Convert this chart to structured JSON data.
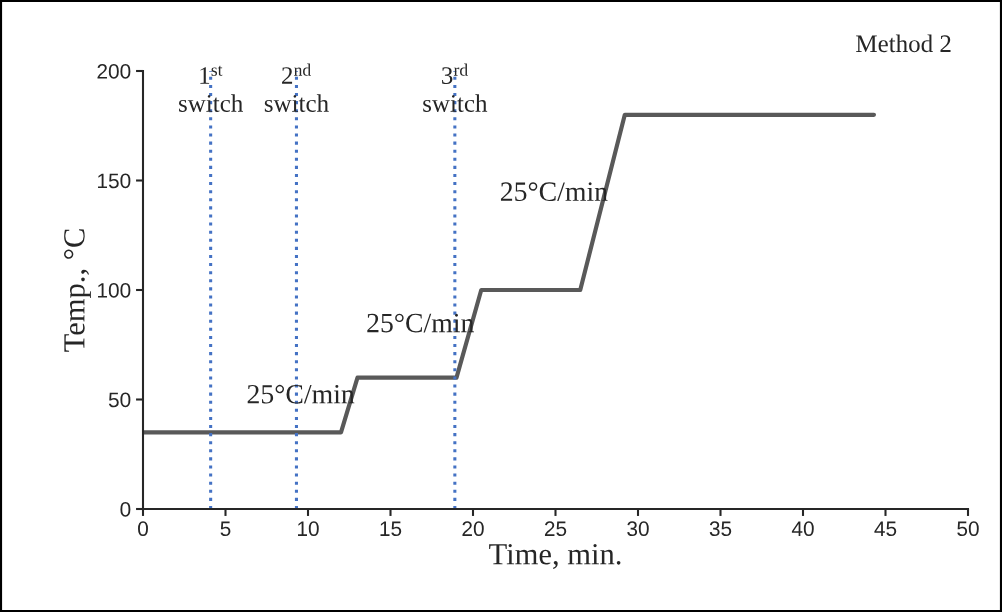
{
  "chart_data": {
    "type": "line",
    "xlabel": "Time, min.",
    "ylabel": "Temp., °C",
    "series": [
      {
        "color": "#595959",
        "x": [
          0,
          12,
          13,
          19,
          20.5,
          26.5,
          29.2,
          44.3
        ],
        "values": [
          35,
          35,
          60,
          60,
          100,
          100,
          180,
          180
        ]
      }
    ],
    "xlim": [
      0,
      50
    ],
    "ylim": [
      0,
      200
    ],
    "xticks": [
      0,
      5,
      10,
      15,
      20,
      25,
      30,
      35,
      40,
      45,
      50
    ],
    "yticks": [
      0,
      50,
      100,
      150,
      200
    ],
    "grid": false,
    "legend": false,
    "marker": "none",
    "line_style": "solid",
    "ref_lines": [
      {
        "axis": "x",
        "value": 4.1,
        "label": "1$^{st}$\nswitch",
        "color": "#4472c4",
        "line_style": "dotted"
      },
      {
        "axis": "x",
        "value": 9.3,
        "label": "2$^{nd}$\nswitch",
        "color": "#4472c4",
        "line_style": "dotted"
      },
      {
        "axis": "x",
        "value": 18.9,
        "label": "3$^{rd}$\nswitch",
        "color": "#4472c4",
        "line_style": "dotted"
      }
    ],
    "annotations": [
      {
        "text": "25°C/min",
        "x": 12.5,
        "y": 47.5
      },
      {
        "text": "25°C/min",
        "x": 19.75,
        "y": 80
      },
      {
        "text": "25°C/min",
        "x": 27.85,
        "y": 140
      },
      "Method 2"
    ]
  }
}
